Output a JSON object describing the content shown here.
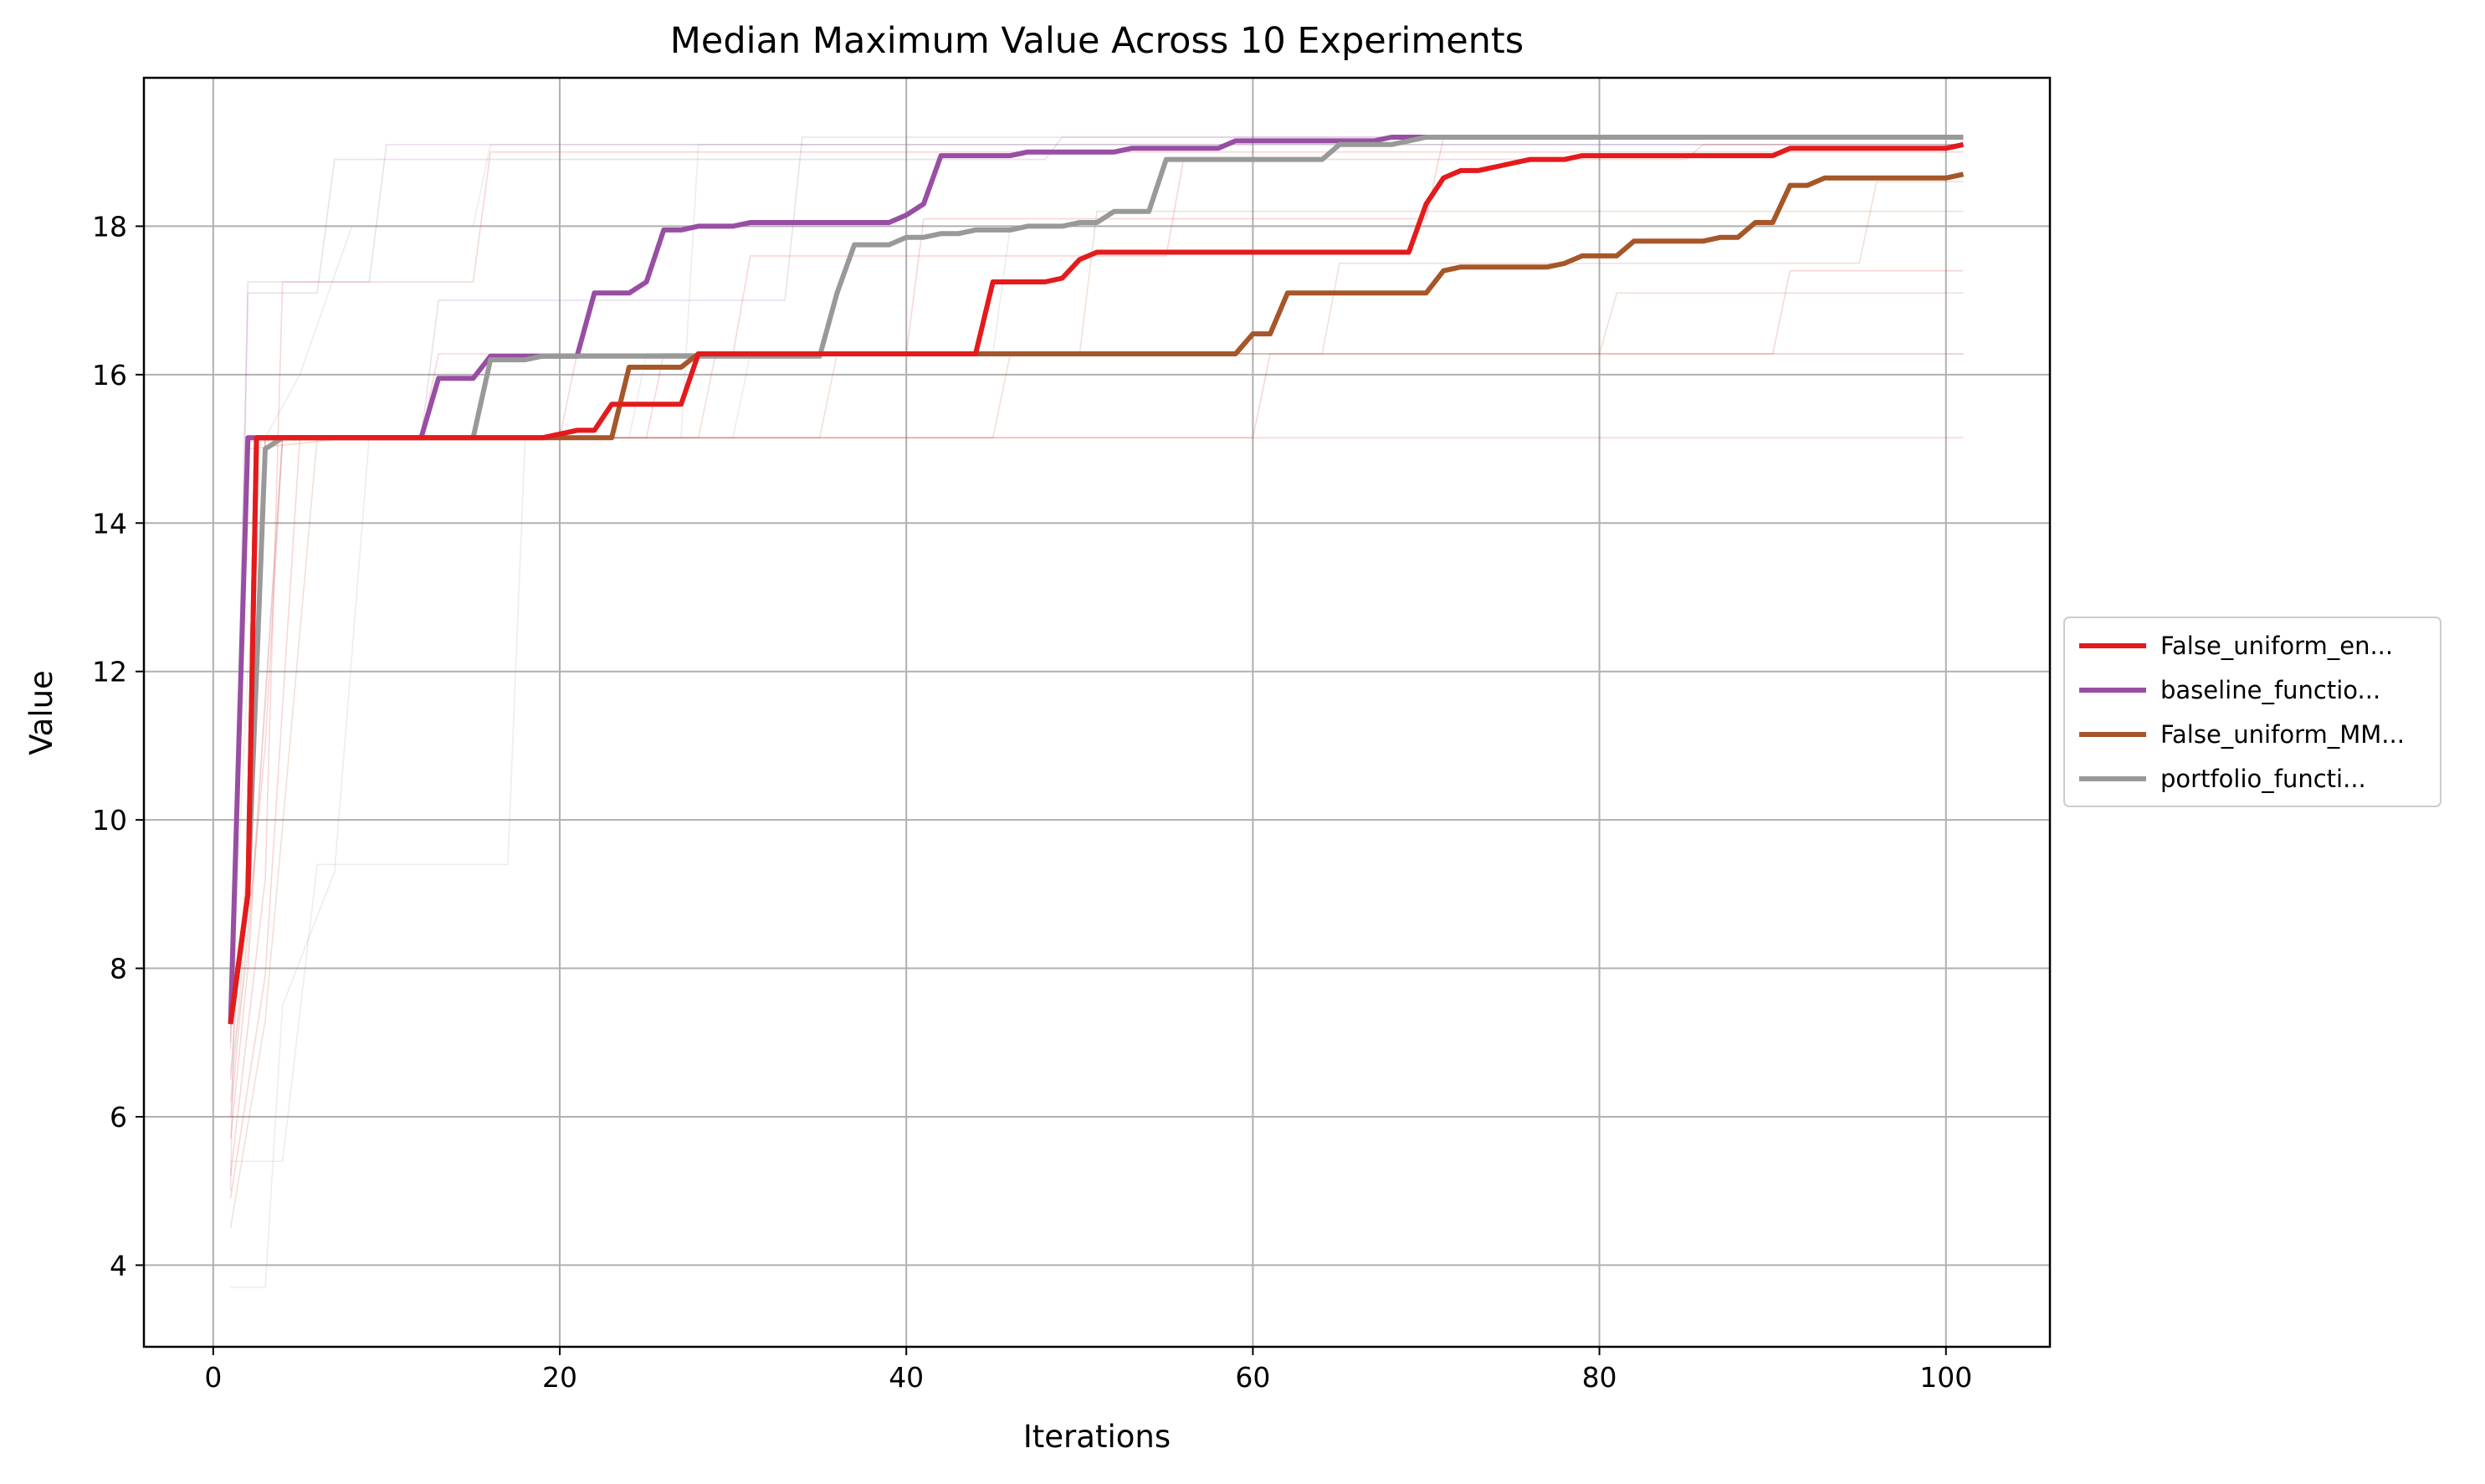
{
  "chart_data": {
    "type": "line",
    "title": "Median Maximum Value Across 10 Experiments",
    "xlabel": "Iterations",
    "ylabel": "Value",
    "xlim": [
      -4,
      106
    ],
    "ylim": [
      2.9,
      20.0
    ],
    "xticks": [
      0,
      20,
      40,
      60,
      80,
      100
    ],
    "yticks": [
      4,
      6,
      8,
      10,
      12,
      14,
      16,
      18
    ],
    "grid": true,
    "legend_position": "center-right outside",
    "series": [
      {
        "name": "False_uniform_en...",
        "color": "#e41a1c",
        "points": [
          [
            1,
            7.25
          ],
          [
            2,
            9.0
          ],
          [
            2.5,
            15.15
          ],
          [
            15,
            15.15
          ],
          [
            19,
            15.15
          ],
          [
            21,
            15.25
          ],
          [
            22,
            15.25
          ],
          [
            23,
            15.6
          ],
          [
            27,
            15.6
          ],
          [
            28,
            16.28
          ],
          [
            44,
            16.28
          ],
          [
            45,
            17.25
          ],
          [
            48,
            17.25
          ],
          [
            49,
            17.3
          ],
          [
            50,
            17.55
          ],
          [
            51,
            17.65
          ],
          [
            69,
            17.65
          ],
          [
            70,
            18.3
          ],
          [
            71,
            18.65
          ],
          [
            72,
            18.75
          ],
          [
            73,
            18.75
          ],
          [
            74,
            18.8
          ],
          [
            75,
            18.85
          ],
          [
            76,
            18.9
          ],
          [
            78,
            18.9
          ],
          [
            79,
            18.95
          ],
          [
            90,
            18.95
          ],
          [
            91,
            19.05
          ],
          [
            100,
            19.05
          ],
          [
            101,
            19.1
          ]
        ]
      },
      {
        "name": "baseline_functio...",
        "color": "#984ea3",
        "points": [
          [
            1,
            7.25
          ],
          [
            2,
            15.15
          ],
          [
            3,
            15.15
          ],
          [
            12,
            15.15
          ],
          [
            13,
            15.95
          ],
          [
            15,
            15.95
          ],
          [
            16,
            16.25
          ],
          [
            20,
            16.25
          ],
          [
            21,
            16.25
          ],
          [
            22,
            17.1
          ],
          [
            24,
            17.1
          ],
          [
            25,
            17.25
          ],
          [
            26,
            17.95
          ],
          [
            27,
            17.95
          ],
          [
            28,
            18.0
          ],
          [
            30,
            18.0
          ],
          [
            31,
            18.05
          ],
          [
            39,
            18.05
          ],
          [
            40,
            18.15
          ],
          [
            41,
            18.3
          ],
          [
            42,
            18.95
          ],
          [
            46,
            18.95
          ],
          [
            47,
            19.0
          ],
          [
            52,
            19.0
          ],
          [
            53,
            19.05
          ],
          [
            58,
            19.05
          ],
          [
            59,
            19.15
          ],
          [
            67,
            19.15
          ],
          [
            68,
            19.2
          ],
          [
            101,
            19.2
          ]
        ]
      },
      {
        "name": "False_uniform_MM...",
        "color": "#a65628",
        "points": [
          [
            1,
            7.25
          ],
          [
            2,
            9.0
          ],
          [
            2.5,
            15.15
          ],
          [
            23,
            15.15
          ],
          [
            24,
            16.1
          ],
          [
            26,
            16.1
          ],
          [
            27,
            16.1
          ],
          [
            28,
            16.28
          ],
          [
            59,
            16.28
          ],
          [
            60,
            16.55
          ],
          [
            61,
            16.55
          ],
          [
            62,
            17.1
          ],
          [
            69,
            17.1
          ],
          [
            70,
            17.1
          ],
          [
            71,
            17.4
          ],
          [
            72,
            17.45
          ],
          [
            77,
            17.45
          ],
          [
            78,
            17.5
          ],
          [
            79,
            17.6
          ],
          [
            81,
            17.6
          ],
          [
            82,
            17.8
          ],
          [
            86,
            17.8
          ],
          [
            87,
            17.85
          ],
          [
            88,
            17.85
          ],
          [
            89,
            18.05
          ],
          [
            90,
            18.05
          ],
          [
            91,
            18.55
          ],
          [
            92,
            18.55
          ],
          [
            93,
            18.65
          ],
          [
            100,
            18.65
          ],
          [
            101,
            18.7
          ]
        ]
      },
      {
        "name": "portfolio_functi...",
        "color": "#999999",
        "points": [
          [
            1,
            7.25
          ],
          [
            2,
            9.0
          ],
          [
            3,
            15.0
          ],
          [
            4,
            15.15
          ],
          [
            15,
            15.15
          ],
          [
            16,
            16.2
          ],
          [
            18,
            16.2
          ],
          [
            19,
            16.25
          ],
          [
            35,
            16.25
          ],
          [
            36,
            17.1
          ],
          [
            37,
            17.75
          ],
          [
            39,
            17.75
          ],
          [
            40,
            17.85
          ],
          [
            41,
            17.85
          ],
          [
            42,
            17.9
          ],
          [
            43,
            17.9
          ],
          [
            44,
            17.95
          ],
          [
            46,
            17.95
          ],
          [
            47,
            18.0
          ],
          [
            49,
            18.0
          ],
          [
            50,
            18.05
          ],
          [
            51,
            18.05
          ],
          [
            52,
            18.2
          ],
          [
            54,
            18.2
          ],
          [
            55,
            18.9
          ],
          [
            64,
            18.9
          ],
          [
            65,
            19.1
          ],
          [
            68,
            19.1
          ],
          [
            69,
            19.15
          ],
          [
            70,
            19.2
          ],
          [
            101,
            19.2
          ]
        ]
      }
    ],
    "background_runs": [
      {
        "color": "#e41a1c",
        "points": [
          [
            1,
            6.5
          ],
          [
            2,
            9.6
          ],
          [
            3,
            15.15
          ],
          [
            20,
            15.15
          ],
          [
            21,
            16.28
          ],
          [
            30,
            16.28
          ],
          [
            31,
            17.6
          ],
          [
            55,
            17.6
          ],
          [
            56,
            18.9
          ],
          [
            85,
            18.9
          ],
          [
            86,
            19.1
          ],
          [
            101,
            19.1
          ]
        ]
      },
      {
        "color": "#e41a1c",
        "points": [
          [
            1,
            5.7
          ],
          [
            2,
            8.0
          ],
          [
            4,
            15.15
          ],
          [
            12,
            15.15
          ],
          [
            13,
            16.28
          ],
          [
            40,
            16.28
          ],
          [
            41,
            18.1
          ],
          [
            70,
            18.1
          ],
          [
            71,
            19.2
          ],
          [
            101,
            19.2
          ]
        ]
      },
      {
        "color": "#e41a1c",
        "points": [
          [
            1,
            4.9
          ],
          [
            3,
            7.9
          ],
          [
            5,
            15.15
          ],
          [
            101,
            15.15
          ]
        ]
      },
      {
        "color": "#e41a1c",
        "points": [
          [
            1,
            7.9
          ],
          [
            2,
            15.0
          ],
          [
            8,
            15.15
          ],
          [
            25,
            15.15
          ],
          [
            26,
            16.28
          ],
          [
            101,
            16.28
          ]
        ]
      },
      {
        "color": "#e41a1c",
        "points": [
          [
            1,
            5.2
          ],
          [
            3,
            9.2
          ],
          [
            4,
            17.25
          ],
          [
            15,
            17.25
          ],
          [
            16,
            19.0
          ],
          [
            101,
            19.0
          ]
        ]
      },
      {
        "color": "#a65628",
        "points": [
          [
            1,
            6.2
          ],
          [
            2,
            8.9
          ],
          [
            3,
            15.15
          ],
          [
            35,
            15.15
          ],
          [
            36,
            16.28
          ],
          [
            64,
            16.28
          ],
          [
            65,
            17.5
          ],
          [
            95,
            17.5
          ],
          [
            96,
            18.6
          ],
          [
            101,
            18.6
          ]
        ]
      },
      {
        "color": "#a65628",
        "points": [
          [
            1,
            4.5
          ],
          [
            3,
            7.3
          ],
          [
            6,
            15.15
          ],
          [
            45,
            15.15
          ],
          [
            46,
            16.28
          ],
          [
            80,
            16.28
          ],
          [
            81,
            17.1
          ],
          [
            101,
            17.1
          ]
        ]
      },
      {
        "color": "#a65628",
        "points": [
          [
            1,
            7.0
          ],
          [
            2,
            15.1
          ],
          [
            10,
            15.15
          ],
          [
            28,
            15.15
          ],
          [
            29,
            16.28
          ],
          [
            50,
            16.28
          ],
          [
            51,
            18.2
          ],
          [
            101,
            18.2
          ]
        ]
      },
      {
        "color": "#999999",
        "points": [
          [
            1,
            3.7
          ],
          [
            3,
            3.7
          ],
          [
            4,
            7.5
          ],
          [
            7,
            9.3
          ],
          [
            9,
            15.15
          ],
          [
            30,
            15.15
          ],
          [
            31,
            16.28
          ],
          [
            45,
            16.28
          ],
          [
            46,
            18.0
          ],
          [
            101,
            18.0
          ]
        ]
      },
      {
        "color": "#999999",
        "points": [
          [
            1,
            5.4
          ],
          [
            4,
            5.4
          ],
          [
            6,
            9.4
          ],
          [
            17,
            9.4
          ],
          [
            18,
            15.15
          ],
          [
            27,
            15.15
          ],
          [
            28,
            19.1
          ],
          [
            101,
            19.1
          ]
        ]
      },
      {
        "color": "#999999",
        "points": [
          [
            1,
            7.2
          ],
          [
            2,
            12.0
          ],
          [
            3,
            15.15
          ],
          [
            5,
            16.0
          ],
          [
            8,
            18.0
          ],
          [
            15,
            18.0
          ],
          [
            16,
            19.1
          ],
          [
            101,
            19.1
          ]
        ]
      },
      {
        "color": "#984ea3",
        "points": [
          [
            1,
            6.9
          ],
          [
            2,
            17.25
          ],
          [
            9,
            17.25
          ],
          [
            10,
            19.1
          ],
          [
            101,
            19.1
          ]
        ]
      },
      {
        "color": "#984ea3",
        "points": [
          [
            1,
            7.5
          ],
          [
            2,
            15.15
          ],
          [
            12,
            15.15
          ],
          [
            13,
            17.0
          ],
          [
            33,
            17.0
          ],
          [
            34,
            19.2
          ],
          [
            101,
            19.2
          ]
        ]
      },
      {
        "color": "#984ea3",
        "points": [
          [
            1,
            5.0
          ],
          [
            2,
            17.1
          ],
          [
            6,
            17.1
          ],
          [
            7,
            18.9
          ],
          [
            48,
            18.9
          ],
          [
            49,
            19.2
          ],
          [
            101,
            19.2
          ]
        ]
      },
      {
        "color": "#e41a1c",
        "points": [
          [
            1,
            6.0
          ],
          [
            3,
            11.0
          ],
          [
            4,
            15.15
          ],
          [
            60,
            15.15
          ],
          [
            61,
            16.28
          ],
          [
            90,
            16.28
          ],
          [
            91,
            17.4
          ],
          [
            101,
            17.4
          ]
        ]
      },
      {
        "color": "#999999",
        "points": [
          [
            1,
            6.6
          ],
          [
            2,
            8.2
          ],
          [
            4,
            15.15
          ],
          [
            24,
            15.15
          ],
          [
            25,
            16.28
          ],
          [
            101,
            16.28
          ]
        ]
      }
    ]
  }
}
